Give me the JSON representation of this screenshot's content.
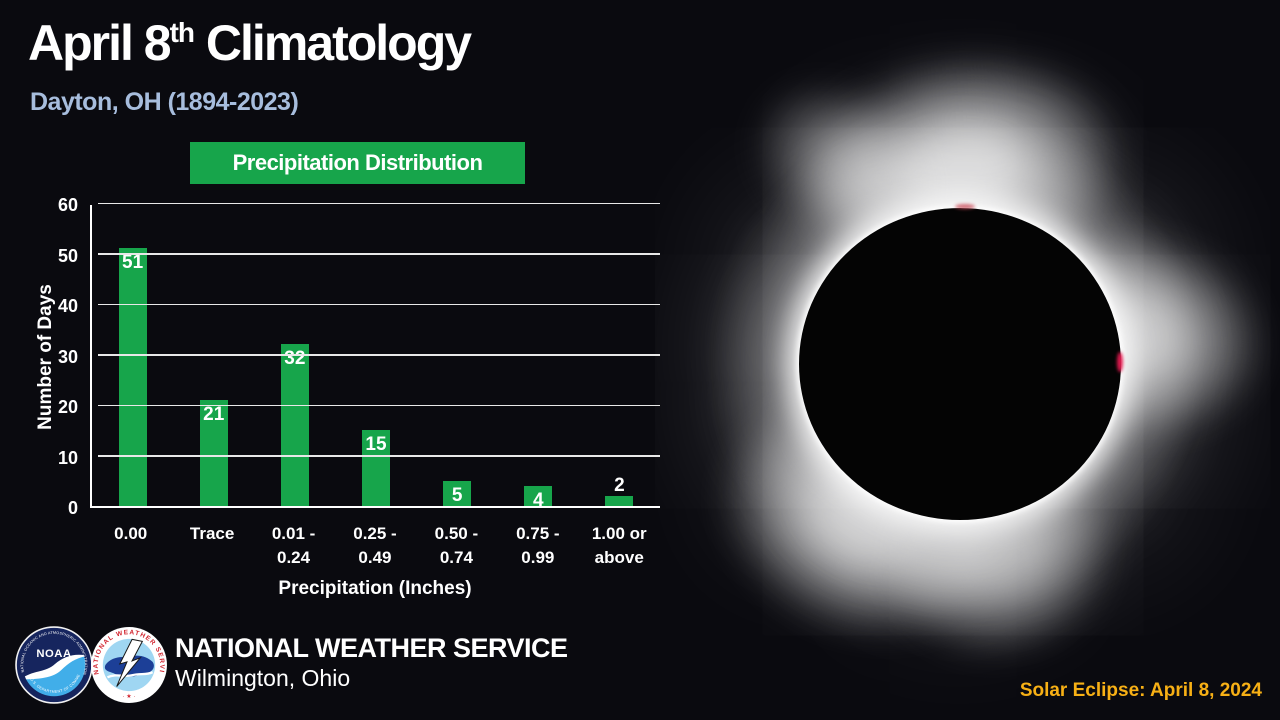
{
  "page": {
    "background": "#0a0a0f"
  },
  "header": {
    "title_prefix": "April 8",
    "title_superscript": "th",
    "title_suffix": " Climatology",
    "subtitle": "Dayton, OH (1894-2023)",
    "subtitle_color": "#a7bddd"
  },
  "chart_banner": {
    "label": "Precipitation Distribution",
    "background": "#17a54b"
  },
  "chart_data": {
    "type": "bar",
    "title": "Precipitation Distribution",
    "categories": [
      "0.00",
      "Trace",
      "0.01 - 0.24",
      "0.25 - 0.49",
      "0.50 - 0.74",
      "0.75 - 0.99",
      "1.00 or above"
    ],
    "category_lines": [
      [
        "0.00"
      ],
      [
        "Trace"
      ],
      [
        "0.01 -",
        "0.24"
      ],
      [
        "0.25 -",
        "0.49"
      ],
      [
        "0.50 -",
        "0.74"
      ],
      [
        "0.75 -",
        "0.99"
      ],
      [
        "1.00 or",
        "above"
      ]
    ],
    "values": [
      51,
      21,
      32,
      15,
      5,
      4,
      2
    ],
    "xlabel": "Precipitation (Inches)",
    "ylabel": "Number of Days",
    "ylim": [
      0,
      60
    ],
    "yticks": [
      0,
      10,
      20,
      30,
      40,
      50,
      60
    ],
    "grid": true,
    "legend_position": "none",
    "bar_color": "#17a54b",
    "value_label_color": "#ffffff",
    "gridline_color": "#e8e8e8"
  },
  "footer": {
    "org_name": "NATIONAL WEATHER SERVICE",
    "office": "Wilmington, Ohio",
    "noaa_logo": {
      "text": "NOAA",
      "ring_top": "NATIONAL OCEANIC AND ATMOSPHERIC ADMINISTRATION",
      "ring_bottom": "U.S. DEPARTMENT OF COMMERCE"
    },
    "nws_logo": {
      "ring": "NATIONAL WEATHER SERVICE",
      "stars": "· ★ ·"
    }
  },
  "eclipse": {
    "caption": "Solar Eclipse: April 8, 2024",
    "caption_color": "#f7b015"
  }
}
